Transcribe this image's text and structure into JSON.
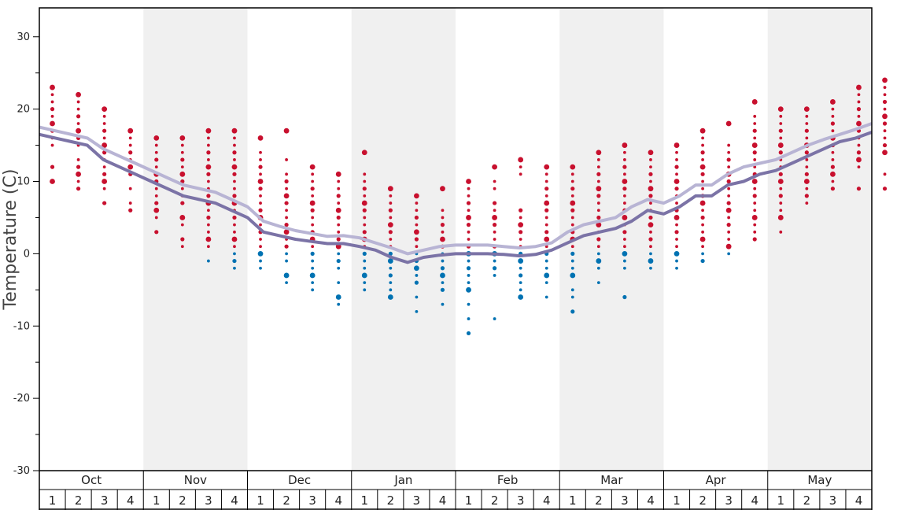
{
  "chart_data": {
    "type": "scatter",
    "ylabel": "Temperature (C)",
    "ylim": [
      -30,
      34
    ],
    "yticks": [
      -30,
      -20,
      -10,
      0,
      10,
      20,
      30
    ],
    "months": [
      "Oct",
      "Nov",
      "Dec",
      "Jan",
      "Feb",
      "Mar",
      "Apr",
      "May"
    ],
    "weeks": [
      "1",
      "2",
      "3",
      "4"
    ],
    "colors": {
      "warm_points": "#c8102e",
      "cold_points": "#0072b2",
      "upper_line": "#b8b4d4",
      "lower_line": "#7b73a6",
      "band": "#f0f0f0"
    },
    "series": [
      {
        "kind": "line",
        "values": [
          17.5,
          17.0,
          16.5,
          16.0,
          14.5,
          13.5,
          12.5,
          11.5,
          10.5,
          9.5,
          9.0,
          8.5,
          7.5,
          6.5,
          4.5,
          3.8,
          3.2,
          2.8,
          2.4,
          2.5,
          2.2,
          1.5,
          0.8,
          0,
          0.5,
          1.0,
          1.2,
          1.2,
          1.2,
          1.0,
          0.8,
          1.0,
          1.5,
          3.0,
          4.0,
          4.5,
          5.0,
          6.5,
          7.5,
          7.0,
          8.0,
          9.5,
          9.5,
          11.0,
          12.0,
          12.5,
          13.0,
          14.0,
          15.0,
          15.8,
          16.5,
          17.2,
          18.0
        ]
      },
      {
        "kind": "line",
        "values": [
          16.5,
          16.0,
          15.5,
          15.0,
          13.0,
          12.0,
          11.0,
          10.0,
          9.0,
          8.0,
          7.5,
          7.0,
          6.0,
          5.0,
          3.0,
          2.5,
          2.0,
          1.7,
          1.4,
          1.4,
          1.0,
          0.5,
          -0.5,
          -1.2,
          -0.5,
          -0.2,
          0,
          0,
          0,
          -0.1,
          -0.3,
          -0.1,
          0.5,
          1.5,
          2.5,
          3.0,
          3.5,
          4.5,
          6.0,
          5.5,
          6.5,
          8.0,
          8.0,
          9.5,
          10.0,
          11.0,
          11.5,
          12.5,
          13.5,
          14.5,
          15.5,
          16.0,
          16.8
        ]
      },
      {
        "kind": "points",
        "weeks": [
          [
            23,
            22,
            21,
            20,
            19,
            18,
            17,
            16,
            15,
            12,
            10
          ],
          [
            22,
            21,
            20,
            19,
            18,
            17,
            16,
            15,
            13,
            12,
            11,
            10,
            9
          ],
          [
            20,
            19,
            18,
            17,
            16,
            15,
            14,
            13,
            12,
            11,
            10,
            9,
            7
          ],
          [
            17,
            16,
            15,
            14,
            13,
            12,
            11,
            9,
            7,
            6
          ],
          [
            16,
            15,
            14,
            13,
            12,
            11,
            10,
            9,
            8,
            7,
            6,
            5,
            3
          ],
          [
            16,
            15,
            14,
            13,
            12,
            11,
            10,
            9,
            8,
            7,
            5,
            4,
            2,
            1
          ],
          [
            17,
            16,
            15,
            14,
            13,
            12,
            11,
            10,
            9,
            8,
            7,
            6,
            5,
            4,
            3,
            2,
            1,
            -1
          ],
          [
            17,
            16,
            15,
            14,
            13,
            12,
            11,
            10,
            9,
            8,
            7,
            6,
            5,
            4,
            3,
            2,
            1,
            0,
            -1,
            -2
          ],
          [
            16,
            14,
            13,
            12,
            11,
            10,
            9,
            8,
            7,
            6,
            5,
            4,
            3,
            2,
            1,
            0,
            -1,
            -2
          ],
          [
            17,
            13,
            11,
            10,
            9,
            8,
            7,
            6,
            5,
            4,
            3,
            2,
            1,
            0,
            -1,
            -3,
            -4
          ],
          [
            12,
            11,
            10,
            9,
            8,
            7,
            6,
            5,
            4,
            3,
            2,
            1,
            0,
            -1,
            -2,
            -3,
            -4,
            -5
          ],
          [
            11,
            10,
            9,
            8,
            7,
            6,
            5,
            4,
            3,
            2,
            1,
            0,
            -1,
            -2,
            -4,
            -6,
            -7
          ],
          [
            14,
            11,
            10,
            9,
            8,
            7,
            6,
            5,
            4,
            3,
            2,
            1,
            0,
            -1,
            -2,
            -3,
            -4,
            -5
          ],
          [
            9,
            8,
            7,
            6,
            5,
            4,
            3,
            2,
            1,
            0,
            -1,
            -2,
            -3,
            -4,
            -5,
            -6
          ],
          [
            8,
            7,
            6,
            5,
            4,
            3,
            2,
            1,
            0,
            -1,
            -2,
            -3,
            -4,
            -6,
            -8
          ],
          [
            9,
            6,
            5,
            4,
            3,
            2,
            1,
            0,
            -1,
            -2,
            -3,
            -4,
            -5,
            -7
          ],
          [
            10,
            9,
            8,
            7,
            6,
            5,
            4,
            3,
            2,
            1,
            0,
            -1,
            -2,
            -3,
            -4,
            -5,
            -7,
            -9,
            -11
          ],
          [
            12,
            10,
            9,
            7,
            6,
            5,
            4,
            3,
            2,
            1,
            0,
            -1,
            -2,
            -3,
            -9
          ],
          [
            13,
            12,
            11,
            6,
            5,
            4,
            3,
            2,
            1,
            0,
            -1,
            -2,
            -3,
            -4,
            -5,
            -6
          ],
          [
            12,
            11,
            10,
            9,
            8,
            7,
            6,
            5,
            4,
            3,
            2,
            1,
            0,
            -1,
            -2,
            -3,
            -4,
            -6
          ],
          [
            12,
            11,
            10,
            9,
            8,
            7,
            6,
            5,
            4,
            3,
            2,
            1,
            0,
            -1,
            -2,
            -3,
            -5,
            -6,
            -8
          ],
          [
            14,
            13,
            12,
            11,
            10,
            9,
            8,
            7,
            6,
            5,
            4,
            3,
            2,
            1,
            0,
            -1,
            -2,
            -4
          ],
          [
            15,
            14,
            13,
            12,
            11,
            10,
            9,
            8,
            7,
            6,
            5,
            4,
            3,
            2,
            1,
            0,
            -1,
            -2,
            -6
          ],
          [
            14,
            13,
            12,
            11,
            10,
            9,
            8,
            7,
            6,
            5,
            4,
            3,
            2,
            1,
            0,
            -1,
            -2
          ],
          [
            15,
            14,
            13,
            12,
            11,
            10,
            9,
            8,
            7,
            6,
            5,
            4,
            3,
            2,
            1,
            0,
            -1,
            -2
          ],
          [
            17,
            16,
            15,
            14,
            13,
            12,
            11,
            10,
            9,
            8,
            7,
            6,
            5,
            4,
            3,
            2,
            1,
            0,
            -1
          ],
          [
            18,
            15,
            14,
            13,
            12,
            11,
            10,
            9,
            8,
            7,
            6,
            5,
            4,
            3,
            2,
            1,
            0
          ],
          [
            21,
            19,
            18,
            17,
            16,
            15,
            14,
            13,
            12,
            11,
            10,
            9,
            8,
            7,
            6,
            5,
            4,
            3,
            2
          ],
          [
            20,
            19,
            18,
            17,
            16,
            15,
            14,
            13,
            12,
            11,
            10,
            9,
            8,
            7,
            6,
            5,
            3
          ],
          [
            20,
            19,
            18,
            17,
            16,
            15,
            14,
            13,
            12,
            11,
            10,
            9,
            8,
            7
          ],
          [
            21,
            20,
            19,
            18,
            17,
            16,
            15,
            14,
            13,
            12,
            11,
            10,
            9
          ],
          [
            23,
            22,
            21,
            20,
            19,
            18,
            17,
            16,
            15,
            14,
            13,
            12,
            9
          ],
          [
            24,
            23,
            22,
            21,
            20,
            19,
            18,
            17,
            16,
            15,
            14,
            11,
            9
          ]
        ]
      }
    ]
  }
}
